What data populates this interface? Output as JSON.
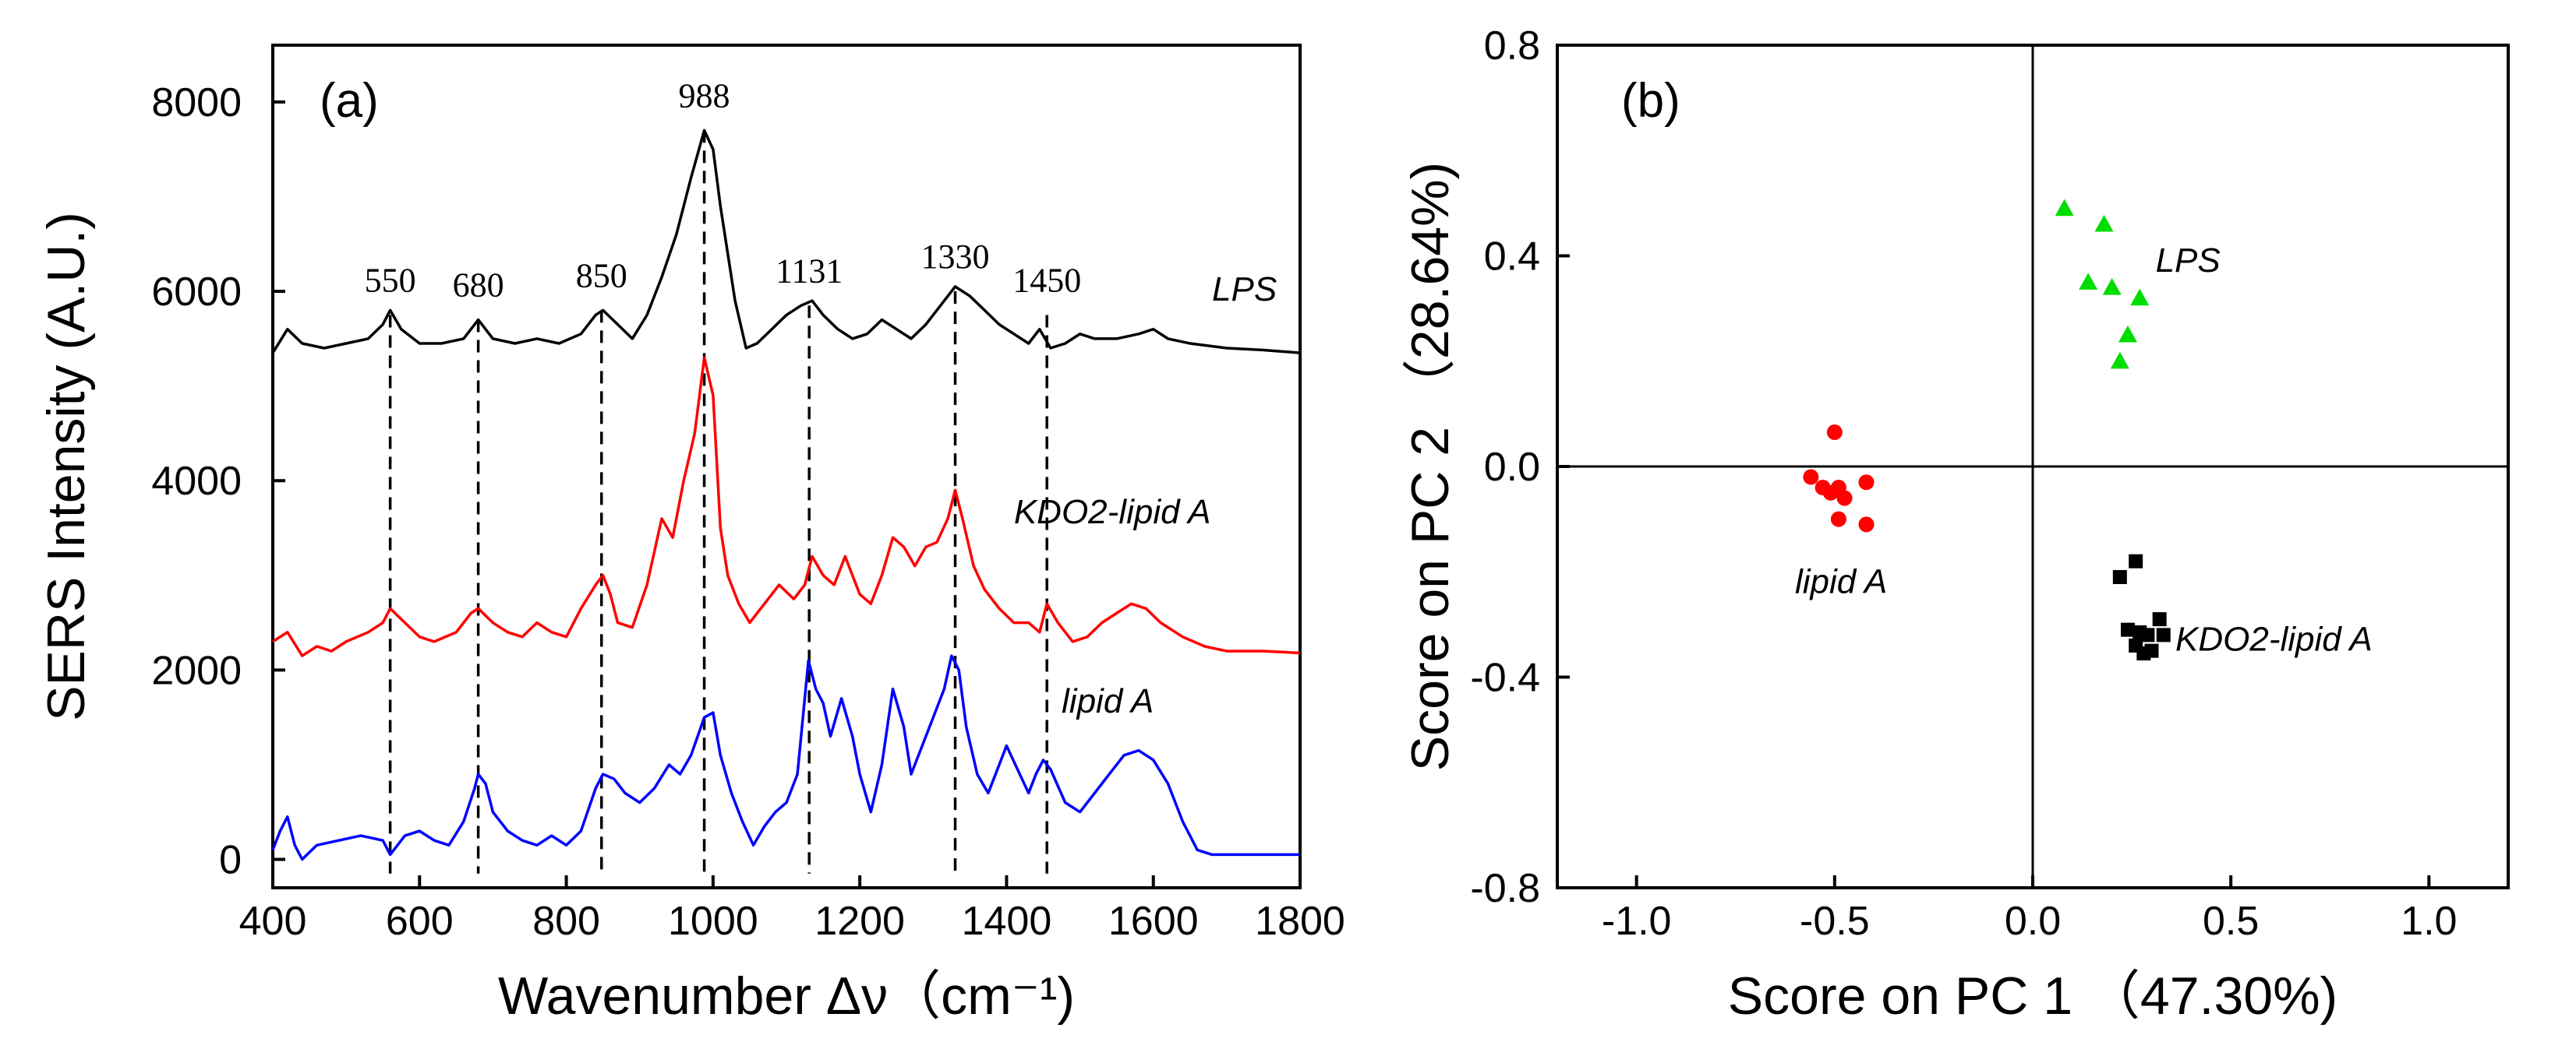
{
  "chart_data": [
    {
      "type": "line",
      "panel_label": "(a)",
      "xlabel": "Wavenumber Δν（cm⁻¹)",
      "ylabel": "SERS Intensity (A.U.)",
      "xlim": [
        400,
        1800
      ],
      "ylim": [
        -300,
        8600
      ],
      "x_ticks": [
        "400",
        "600",
        "800",
        "1000",
        "1200",
        "1400",
        "1600",
        "1800"
      ],
      "y_ticks": [
        "0",
        "2000",
        "4000",
        "6000",
        "8000"
      ],
      "peaks": [
        {
          "label": "550",
          "x": 560
        },
        {
          "label": "680",
          "x": 680
        },
        {
          "label": "850",
          "x": 848
        },
        {
          "label": "988",
          "x": 988
        },
        {
          "label": "1131",
          "x": 1131
        },
        {
          "label": "1330",
          "x": 1330
        },
        {
          "label": "1450",
          "x": 1455
        }
      ],
      "series": [
        {
          "name": "LPS",
          "color": "#000000",
          "points": [
            [
              400,
              5350
            ],
            [
              420,
              5600
            ],
            [
              440,
              5450
            ],
            [
              470,
              5400
            ],
            [
              500,
              5450
            ],
            [
              530,
              5500
            ],
            [
              550,
              5650
            ],
            [
              560,
              5800
            ],
            [
              575,
              5600
            ],
            [
              600,
              5450
            ],
            [
              630,
              5450
            ],
            [
              660,
              5500
            ],
            [
              680,
              5700
            ],
            [
              700,
              5500
            ],
            [
              730,
              5450
            ],
            [
              760,
              5500
            ],
            [
              790,
              5450
            ],
            [
              820,
              5550
            ],
            [
              840,
              5750
            ],
            [
              850,
              5800
            ],
            [
              870,
              5650
            ],
            [
              890,
              5500
            ],
            [
              910,
              5750
            ],
            [
              930,
              6150
            ],
            [
              950,
              6600
            ],
            [
              970,
              7200
            ],
            [
              988,
              7700
            ],
            [
              1000,
              7500
            ],
            [
              1010,
              6900
            ],
            [
              1030,
              5900
            ],
            [
              1045,
              5400
            ],
            [
              1060,
              5450
            ],
            [
              1080,
              5600
            ],
            [
              1100,
              5750
            ],
            [
              1120,
              5850
            ],
            [
              1135,
              5900
            ],
            [
              1150,
              5750
            ],
            [
              1170,
              5600
            ],
            [
              1190,
              5500
            ],
            [
              1210,
              5550
            ],
            [
              1230,
              5700
            ],
            [
              1250,
              5600
            ],
            [
              1270,
              5500
            ],
            [
              1290,
              5650
            ],
            [
              1310,
              5850
            ],
            [
              1330,
              6050
            ],
            [
              1350,
              5950
            ],
            [
              1370,
              5800
            ],
            [
              1390,
              5650
            ],
            [
              1410,
              5550
            ],
            [
              1430,
              5450
            ],
            [
              1445,
              5600
            ],
            [
              1460,
              5400
            ],
            [
              1480,
              5450
            ],
            [
              1500,
              5550
            ],
            [
              1520,
              5500
            ],
            [
              1550,
              5500
            ],
            [
              1580,
              5550
            ],
            [
              1600,
              5600
            ],
            [
              1620,
              5500
            ],
            [
              1650,
              5450
            ],
            [
              1700,
              5400
            ],
            [
              1750,
              5380
            ],
            [
              1800,
              5350
            ]
          ]
        },
        {
          "name": "KDO2-lipid A",
          "color": "#ff0000",
          "points": [
            [
              400,
              2300
            ],
            [
              420,
              2400
            ],
            [
              440,
              2150
            ],
            [
              460,
              2250
            ],
            [
              480,
              2200
            ],
            [
              500,
              2300
            ],
            [
              530,
              2400
            ],
            [
              550,
              2500
            ],
            [
              560,
              2650
            ],
            [
              580,
              2500
            ],
            [
              600,
              2350
            ],
            [
              620,
              2300
            ],
            [
              650,
              2400
            ],
            [
              670,
              2600
            ],
            [
              680,
              2650
            ],
            [
              700,
              2500
            ],
            [
              720,
              2400
            ],
            [
              740,
              2350
            ],
            [
              760,
              2500
            ],
            [
              780,
              2400
            ],
            [
              800,
              2350
            ],
            [
              820,
              2650
            ],
            [
              840,
              2900
            ],
            [
              850,
              3000
            ],
            [
              860,
              2800
            ],
            [
              870,
              2500
            ],
            [
              890,
              2450
            ],
            [
              910,
              2900
            ],
            [
              930,
              3600
            ],
            [
              945,
              3400
            ],
            [
              960,
              4000
            ],
            [
              975,
              4500
            ],
            [
              988,
              5300
            ],
            [
              1000,
              4900
            ],
            [
              1010,
              3500
            ],
            [
              1020,
              3000
            ],
            [
              1035,
              2700
            ],
            [
              1050,
              2500
            ],
            [
              1070,
              2700
            ],
            [
              1090,
              2900
            ],
            [
              1110,
              2750
            ],
            [
              1125,
              2900
            ],
            [
              1135,
              3200
            ],
            [
              1150,
              3000
            ],
            [
              1165,
              2900
            ],
            [
              1180,
              3200
            ],
            [
              1200,
              2800
            ],
            [
              1215,
              2700
            ],
            [
              1230,
              3000
            ],
            [
              1245,
              3400
            ],
            [
              1260,
              3300
            ],
            [
              1275,
              3100
            ],
            [
              1290,
              3300
            ],
            [
              1305,
              3350
            ],
            [
              1320,
              3600
            ],
            [
              1330,
              3900
            ],
            [
              1340,
              3600
            ],
            [
              1355,
              3100
            ],
            [
              1370,
              2850
            ],
            [
              1390,
              2650
            ],
            [
              1410,
              2500
            ],
            [
              1430,
              2500
            ],
            [
              1445,
              2400
            ],
            [
              1455,
              2700
            ],
            [
              1470,
              2500
            ],
            [
              1490,
              2300
            ],
            [
              1510,
              2350
            ],
            [
              1530,
              2500
            ],
            [
              1550,
              2600
            ],
            [
              1570,
              2700
            ],
            [
              1590,
              2650
            ],
            [
              1610,
              2500
            ],
            [
              1640,
              2350
            ],
            [
              1670,
              2250
            ],
            [
              1700,
              2200
            ],
            [
              1750,
              2200
            ],
            [
              1800,
              2180
            ]
          ]
        },
        {
          "name": "lipid A",
          "color": "#0000ff",
          "points": [
            [
              400,
              100
            ],
            [
              410,
              300
            ],
            [
              420,
              450
            ],
            [
              430,
              150
            ],
            [
              440,
              0
            ],
            [
              460,
              150
            ],
            [
              490,
              200
            ],
            [
              520,
              250
            ],
            [
              550,
              200
            ],
            [
              560,
              50
            ],
            [
              580,
              250
            ],
            [
              600,
              300
            ],
            [
              620,
              200
            ],
            [
              640,
              150
            ],
            [
              660,
              400
            ],
            [
              675,
              750
            ],
            [
              680,
              900
            ],
            [
              690,
              800
            ],
            [
              700,
              500
            ],
            [
              720,
              300
            ],
            [
              740,
              200
            ],
            [
              760,
              150
            ],
            [
              780,
              250
            ],
            [
              800,
              150
            ],
            [
              820,
              300
            ],
            [
              840,
              750
            ],
            [
              850,
              900
            ],
            [
              865,
              850
            ],
            [
              880,
              700
            ],
            [
              900,
              600
            ],
            [
              920,
              750
            ],
            [
              940,
              1000
            ],
            [
              955,
              900
            ],
            [
              970,
              1100
            ],
            [
              988,
              1500
            ],
            [
              1000,
              1550
            ],
            [
              1010,
              1100
            ],
            [
              1025,
              700
            ],
            [
              1040,
              400
            ],
            [
              1055,
              150
            ],
            [
              1070,
              350
            ],
            [
              1085,
              500
            ],
            [
              1100,
              600
            ],
            [
              1115,
              900
            ],
            [
              1130,
              2100
            ],
            [
              1140,
              1800
            ],
            [
              1150,
              1650
            ],
            [
              1160,
              1300
            ],
            [
              1175,
              1700
            ],
            [
              1190,
              1300
            ],
            [
              1200,
              900
            ],
            [
              1215,
              500
            ],
            [
              1230,
              1000
            ],
            [
              1245,
              1800
            ],
            [
              1260,
              1400
            ],
            [
              1270,
              900
            ],
            [
              1285,
              1200
            ],
            [
              1300,
              1500
            ],
            [
              1315,
              1800
            ],
            [
              1325,
              2150
            ],
            [
              1335,
              2000
            ],
            [
              1345,
              1400
            ],
            [
              1360,
              900
            ],
            [
              1375,
              700
            ],
            [
              1390,
              1000
            ],
            [
              1400,
              1200
            ],
            [
              1415,
              950
            ],
            [
              1430,
              700
            ],
            [
              1440,
              900
            ],
            [
              1450,
              1050
            ],
            [
              1460,
              950
            ],
            [
              1480,
              600
            ],
            [
              1500,
              500
            ],
            [
              1520,
              700
            ],
            [
              1540,
              900
            ],
            [
              1560,
              1100
            ],
            [
              1580,
              1150
            ],
            [
              1600,
              1050
            ],
            [
              1620,
              800
            ],
            [
              1640,
              400
            ],
            [
              1660,
              100
            ],
            [
              1680,
              50
            ],
            [
              1720,
              50
            ],
            [
              1760,
              50
            ],
            [
              1800,
              50
            ]
          ]
        }
      ],
      "series_labels": [
        {
          "text": "LPS",
          "x": 1680,
          "y": 5900
        },
        {
          "text": "KDO2-lipid A",
          "x": 1410,
          "y": 3550
        },
        {
          "text": "lipid A",
          "x": 1475,
          "y": 1550
        }
      ]
    },
    {
      "type": "scatter",
      "panel_label": "(b)",
      "xlabel": "Score on PC 1 （47.30%)",
      "ylabel": "Score on PC 2 （28.64%)",
      "xlim": [
        -1.2,
        1.2
      ],
      "ylim": [
        -0.8,
        0.8
      ],
      "x_ticks": [
        "-1.0",
        "-0.5",
        "0.0",
        "0.5",
        "1.0"
      ],
      "y_ticks": [
        "-0.8",
        "-0.4",
        "0.0",
        "0.4",
        "0.8"
      ],
      "series": [
        {
          "name": "lipid A",
          "color": "#ff0000",
          "marker": "circle",
          "points": [
            [
              -0.5,
              0.065
            ],
            [
              -0.56,
              -0.02
            ],
            [
              -0.53,
              -0.04
            ],
            [
              -0.51,
              -0.05
            ],
            [
              -0.49,
              -0.04
            ],
            [
              -0.475,
              -0.06
            ],
            [
              -0.42,
              -0.03
            ],
            [
              -0.49,
              -0.1
            ],
            [
              -0.42,
              -0.11
            ]
          ]
        },
        {
          "name": "LPS",
          "color": "#00dd00",
          "marker": "triangle",
          "points": [
            [
              0.08,
              0.49
            ],
            [
              0.18,
              0.46
            ],
            [
              0.14,
              0.35
            ],
            [
              0.2,
              0.34
            ],
            [
              0.27,
              0.32
            ],
            [
              0.24,
              0.25
            ],
            [
              0.22,
              0.2
            ]
          ]
        },
        {
          "name": "KDO2-lipid A",
          "color": "#000000",
          "marker": "square",
          "points": [
            [
              0.26,
              -0.18
            ],
            [
              0.22,
              -0.21
            ],
            [
              0.32,
              -0.29
            ],
            [
              0.24,
              -0.31
            ],
            [
              0.27,
              -0.315
            ],
            [
              0.29,
              -0.32
            ],
            [
              0.33,
              -0.32
            ],
            [
              0.26,
              -0.34
            ],
            [
              0.28,
              -0.355
            ],
            [
              0.3,
              -0.35
            ]
          ]
        }
      ],
      "series_labels": [
        {
          "text": "lipid A",
          "x": -0.6,
          "y": -0.24
        },
        {
          "text": "LPS",
          "x": 0.31,
          "y": 0.37
        },
        {
          "text": "KDO2-lipid A",
          "x": 0.36,
          "y": -0.35
        }
      ]
    }
  ]
}
